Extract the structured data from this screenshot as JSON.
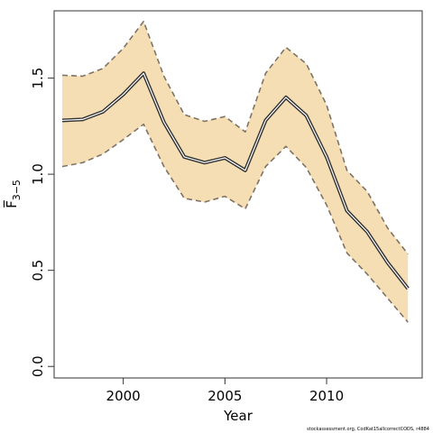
{
  "chart_data": {
    "type": "line",
    "xlabel": "Year",
    "ylabel": "F̅",
    "ylabel_subscript": "3−5",
    "xlim": [
      1996.6,
      2014.7
    ],
    "ylim": [
      -0.06,
      1.85
    ],
    "xticks": [
      2000,
      2005,
      2010
    ],
    "yticks": [
      0.0,
      0.5,
      1.0,
      1.5
    ],
    "ytick_labels": [
      "0.0",
      "0.5",
      "1.0",
      "1.5"
    ],
    "x": [
      1997,
      1998,
      1999,
      2000,
      2001,
      2002,
      2003,
      2004,
      2005,
      2006,
      2007,
      2008,
      2009,
      2010,
      2011,
      2012,
      2013,
      2014
    ],
    "series": [
      {
        "role": "estimate",
        "values": [
          1.28,
          1.285,
          1.325,
          1.415,
          1.525,
          1.27,
          1.09,
          1.06,
          1.085,
          1.02,
          1.28,
          1.4,
          1.305,
          1.09,
          0.81,
          0.7,
          0.54,
          0.405
        ]
      },
      {
        "role": "upper",
        "values": [
          1.515,
          1.51,
          1.55,
          1.655,
          1.795,
          1.51,
          1.31,
          1.275,
          1.3,
          1.22,
          1.525,
          1.66,
          1.575,
          1.36,
          1.02,
          0.91,
          0.72,
          0.585
        ]
      },
      {
        "role": "lower",
        "values": [
          1.04,
          1.06,
          1.105,
          1.18,
          1.26,
          1.04,
          0.875,
          0.855,
          0.885,
          0.82,
          1.04,
          1.145,
          1.035,
          0.84,
          0.59,
          0.48,
          0.355,
          0.23
        ]
      }
    ],
    "colors": {
      "band_fill": "#f5deb3",
      "band_edge": "#7f7365",
      "line_outer": "#333333",
      "line_inner": "#ffffff",
      "frame": "#333333"
    },
    "grid": false,
    "legend": false
  },
  "footnote": "stockassessment.org, CodKat15allcorrectCODS, r4884"
}
